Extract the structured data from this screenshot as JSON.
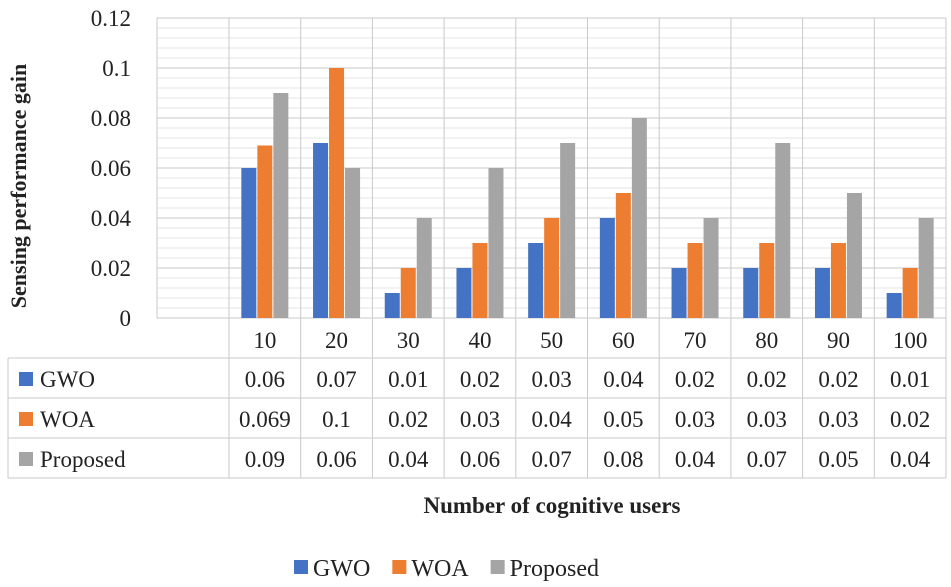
{
  "chart_data": {
    "type": "bar",
    "title": "",
    "xlabel": "Number of cognitive users",
    "ylabel": "Sensing performance gain",
    "ylim": [
      0,
      0.12
    ],
    "yticks": [
      0,
      0.02,
      0.04,
      0.06,
      0.08,
      0.1,
      0.12
    ],
    "ytick_labels": [
      "0",
      "0.02",
      "0.04",
      "0.06",
      "0.08",
      "0.1",
      "0.12"
    ],
    "categories": [
      "10",
      "20",
      "30",
      "40",
      "50",
      "60",
      "70",
      "80",
      "90",
      "100"
    ],
    "series": [
      {
        "name": "GWO",
        "color": "#4472c4",
        "values": [
          0.06,
          0.07,
          0.01,
          0.02,
          0.03,
          0.04,
          0.02,
          0.02,
          0.02,
          0.01
        ],
        "table_labels": [
          "0.06",
          "0.07",
          "0.01",
          "0.02",
          "0.03",
          "0.04",
          "0.02",
          "0.02",
          "0.02",
          "0.01"
        ]
      },
      {
        "name": "WOA",
        "color": "#ed7d31",
        "values": [
          0.069,
          0.1,
          0.02,
          0.03,
          0.04,
          0.05,
          0.03,
          0.03,
          0.03,
          0.02
        ],
        "table_labels": [
          "0.069",
          "0.1",
          "0.02",
          "0.03",
          "0.04",
          "0.05",
          "0.03",
          "0.03",
          "0.03",
          "0.02"
        ]
      },
      {
        "name": "Proposed",
        "color": "#a5a5a5",
        "values": [
          0.09,
          0.06,
          0.04,
          0.06,
          0.07,
          0.08,
          0.04,
          0.07,
          0.05,
          0.04
        ],
        "table_labels": [
          "0.09",
          "0.06",
          "0.04",
          "0.06",
          "0.07",
          "0.08",
          "0.04",
          "0.07",
          "0.05",
          "0.04"
        ]
      }
    ],
    "grid": true,
    "data_table": true,
    "legend": "bottom-center"
  }
}
